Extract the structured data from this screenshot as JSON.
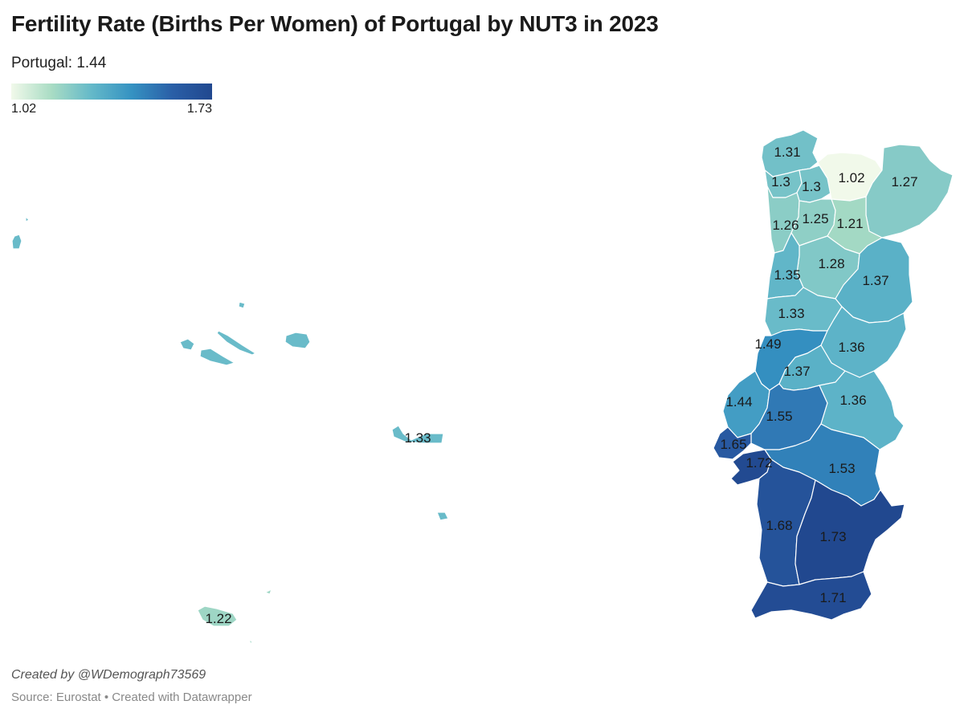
{
  "title": "Fertility Rate (Births Per Women) of Portugal by NUT3 in 2023",
  "subtitle": "Portugal: 1.44",
  "legend": {
    "min_label": "1.02",
    "max_label": "1.73",
    "min": 1.02,
    "max": 1.73
  },
  "colors": {
    "low": "#f1f9ea",
    "mid_low": "#a9dcc4",
    "mid": "#64b9c9",
    "mid_high": "#3592c2",
    "high": "#21488f"
  },
  "regions": [
    {
      "id": "alto-minho",
      "label": "1.31",
      "value": 1.31
    },
    {
      "id": "cavado",
      "label": "1.3",
      "value": 1.3
    },
    {
      "id": "ave",
      "label": "1.3",
      "value": 1.3
    },
    {
      "id": "alto-tamega",
      "label": "1.02",
      "value": 1.02
    },
    {
      "id": "terras-tras-os-montes",
      "label": "1.27",
      "value": 1.27
    },
    {
      "id": "area-metropolitana-porto",
      "label": "1.26",
      "value": 1.26
    },
    {
      "id": "tamega-sousa",
      "label": "1.25",
      "value": 1.25
    },
    {
      "id": "douro",
      "label": "1.21",
      "value": 1.21
    },
    {
      "id": "viseu-dao-lafoes",
      "label": "1.28",
      "value": 1.28
    },
    {
      "id": "regiao-aveiro",
      "label": "1.35",
      "value": 1.35
    },
    {
      "id": "beiras-serra-estrela",
      "label": "1.37",
      "value": 1.37
    },
    {
      "id": "regiao-coimbra",
      "label": "1.33",
      "value": 1.33
    },
    {
      "id": "regiao-leiria",
      "label": "1.49",
      "value": 1.49
    },
    {
      "id": "beira-baixa",
      "label": "1.36",
      "value": 1.36
    },
    {
      "id": "medio-tejo",
      "label": "1.37",
      "value": 1.37
    },
    {
      "id": "oeste",
      "label": "1.44",
      "value": 1.44
    },
    {
      "id": "leziria-tejo",
      "label": "1.55",
      "value": 1.55
    },
    {
      "id": "alto-alentejo",
      "label": "1.36",
      "value": 1.36
    },
    {
      "id": "grande-lisboa",
      "label": "1.65",
      "value": 1.65
    },
    {
      "id": "peninsula-setubal",
      "label": "1.72",
      "value": 1.72
    },
    {
      "id": "alentejo-central",
      "label": "1.53",
      "value": 1.53
    },
    {
      "id": "alentejo-litoral",
      "label": "1.68",
      "value": 1.68
    },
    {
      "id": "baixo-alentejo",
      "label": "1.73",
      "value": 1.73
    },
    {
      "id": "algarve",
      "label": "1.71",
      "value": 1.71
    },
    {
      "id": "azores",
      "label": "1.33",
      "value": 1.33
    },
    {
      "id": "madeira",
      "label": "1.22",
      "value": 1.22
    }
  ],
  "footer": {
    "credit": "Created by @WDemograph73569",
    "source": "Source: Eurostat • Created with Datawrapper"
  }
}
